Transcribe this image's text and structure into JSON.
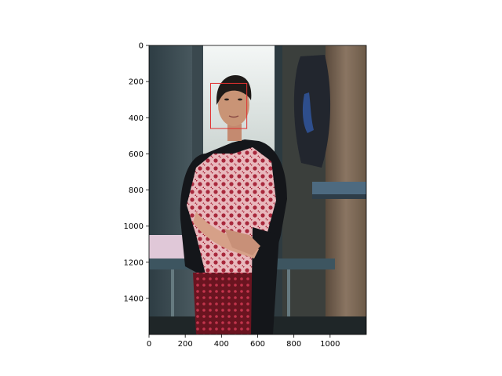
{
  "chart_data": {
    "type": "image",
    "xlim": [
      0,
      1200
    ],
    "ylim": [
      1600,
      0
    ],
    "x_ticks": [
      {
        "value": 0,
        "label": "0"
      },
      {
        "value": 200,
        "label": "200"
      },
      {
        "value": 400,
        "label": "400"
      },
      {
        "value": 600,
        "label": "600"
      },
      {
        "value": 800,
        "label": "800"
      },
      {
        "value": 1000,
        "label": "1000"
      }
    ],
    "y_ticks": [
      {
        "value": 0,
        "label": "0"
      },
      {
        "value": 200,
        "label": "200"
      },
      {
        "value": 400,
        "label": "400"
      },
      {
        "value": 600,
        "label": "600"
      },
      {
        "value": 800,
        "label": "800"
      },
      {
        "value": 1000,
        "label": "1000"
      },
      {
        "value": 1200,
        "label": "1200"
      },
      {
        "value": 1400,
        "label": "1400"
      }
    ],
    "annotations": [
      {
        "kind": "rectangle",
        "x0": 340,
        "y0": 210,
        "x1": 540,
        "y1": 460,
        "color": "#e03030"
      }
    ],
    "image_subject": "woman standing in a wooden room with a face bounding box",
    "grid": false
  }
}
